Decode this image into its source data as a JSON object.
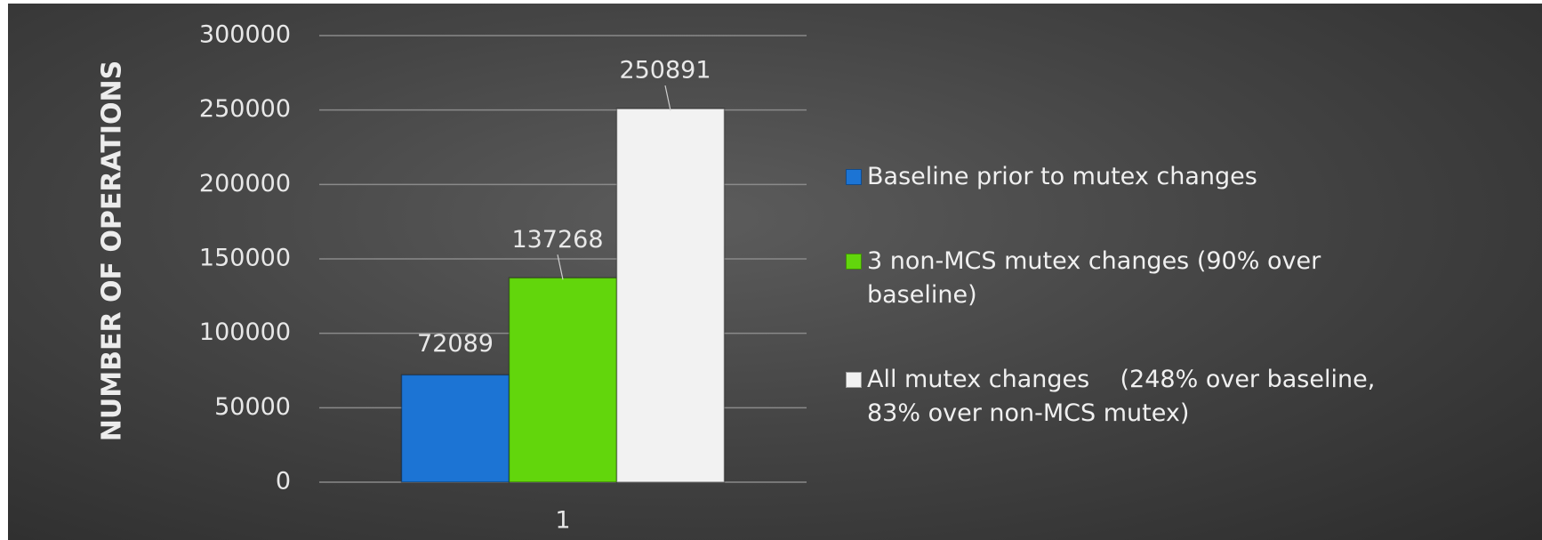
{
  "chart_data": {
    "type": "bar",
    "y_axis_label": "NUMBER OF OPERATIONS",
    "categories": [
      "1"
    ],
    "series": [
      {
        "name": "Baseline prior to mutex changes",
        "color": "#1c74d4",
        "values": [
          72089
        ]
      },
      {
        "name": "3 non-MCS mutex changes (90% over baseline)",
        "color": "#62d60c",
        "values": [
          137268
        ]
      },
      {
        "name": "All mutex changes    (248% over baseline, 83% over non-MCS mutex)",
        "color": "#f2f2f2",
        "values": [
          250891
        ]
      }
    ],
    "ylim": [
      0,
      300000
    ],
    "yticks": [
      0,
      50000,
      100000,
      150000,
      200000,
      250000,
      300000
    ],
    "grid": true,
    "legend": "right"
  }
}
